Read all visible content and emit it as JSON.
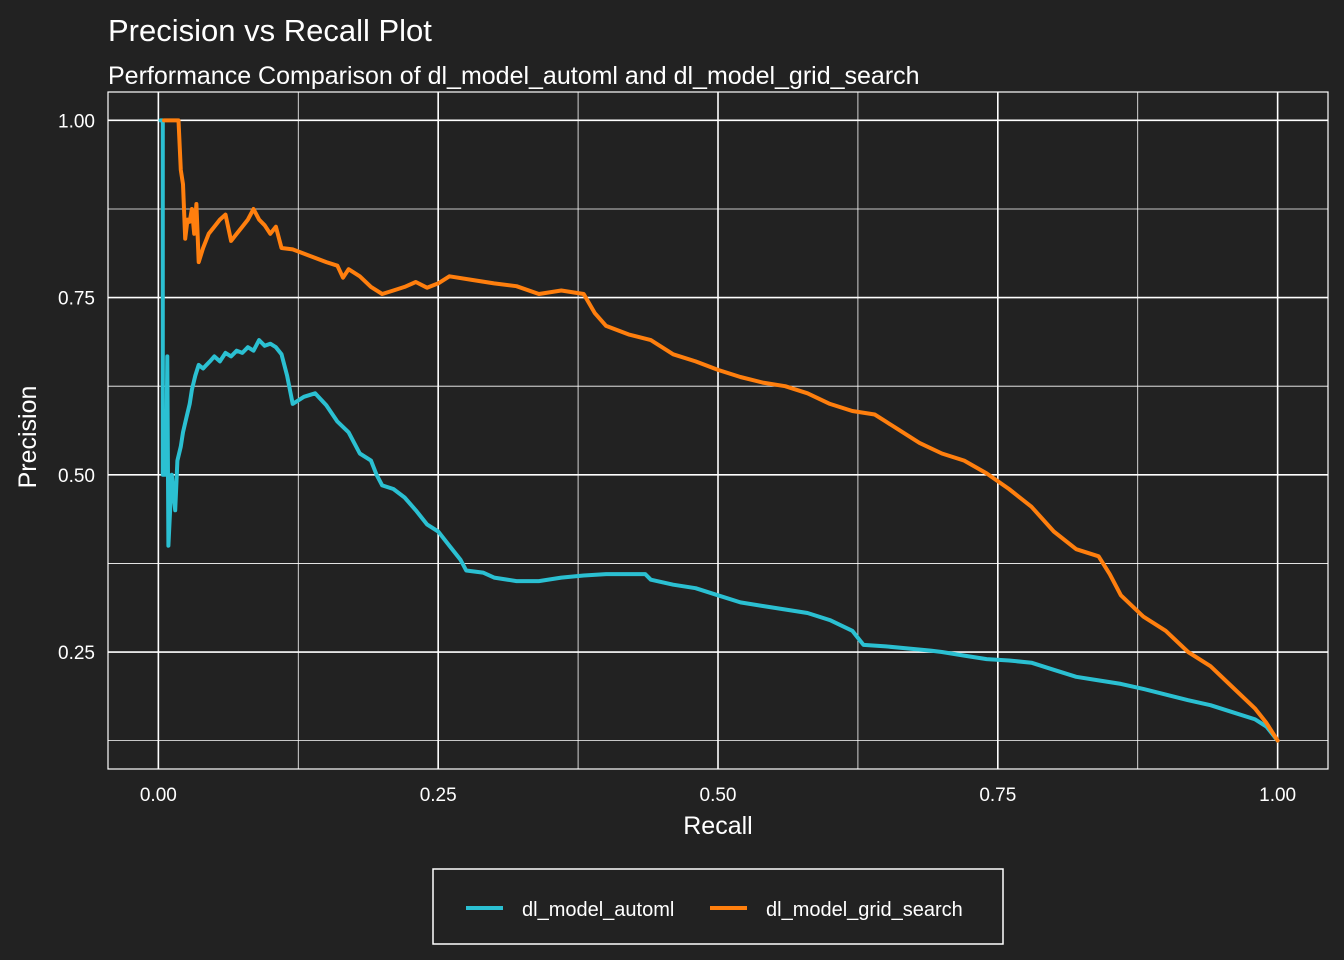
{
  "chart_data": {
    "type": "line",
    "title": "Precision vs Recall Plot",
    "subtitle": "Performance Comparison of dl_model_automl and dl_model_grid_search",
    "xlabel": "Recall",
    "ylabel": "Precision",
    "xlim": [
      -0.045,
      1.045
    ],
    "ylim": [
      0.085,
      1.04
    ],
    "x_ticks": [
      0.0,
      0.25,
      0.5,
      0.75,
      1.0
    ],
    "x_tick_labels": [
      "0.00",
      "0.25",
      "0.50",
      "0.75",
      "1.00"
    ],
    "y_ticks": [
      0.25,
      0.5,
      0.75,
      1.0
    ],
    "y_tick_labels": [
      "0.25",
      "0.50",
      "0.75",
      "1.00"
    ],
    "x_minor": [
      0.125,
      0.375,
      0.625,
      0.875
    ],
    "y_minor": [
      0.125,
      0.375,
      0.625,
      0.875
    ],
    "grid": true,
    "legend_position": "bottom",
    "series": [
      {
        "name": "dl_model_automl",
        "color": "#2bc0d2",
        "points": [
          [
            0.002,
            1.0
          ],
          [
            0.004,
            1.0
          ],
          [
            0.004,
            0.5
          ],
          [
            0.007,
            0.5
          ],
          [
            0.008,
            0.667
          ],
          [
            0.009,
            0.4
          ],
          [
            0.012,
            0.5
          ],
          [
            0.015,
            0.45
          ],
          [
            0.017,
            0.52
          ],
          [
            0.02,
            0.54
          ],
          [
            0.022,
            0.56
          ],
          [
            0.025,
            0.58
          ],
          [
            0.028,
            0.6
          ],
          [
            0.03,
            0.62
          ],
          [
            0.033,
            0.64
          ],
          [
            0.036,
            0.655
          ],
          [
            0.04,
            0.65
          ],
          [
            0.043,
            0.655
          ],
          [
            0.046,
            0.66
          ],
          [
            0.05,
            0.667
          ],
          [
            0.055,
            0.66
          ],
          [
            0.06,
            0.672
          ],
          [
            0.065,
            0.667
          ],
          [
            0.07,
            0.675
          ],
          [
            0.075,
            0.672
          ],
          [
            0.08,
            0.68
          ],
          [
            0.085,
            0.675
          ],
          [
            0.09,
            0.69
          ],
          [
            0.095,
            0.682
          ],
          [
            0.1,
            0.685
          ],
          [
            0.105,
            0.68
          ],
          [
            0.11,
            0.67
          ],
          [
            0.115,
            0.64
          ],
          [
            0.12,
            0.6
          ],
          [
            0.13,
            0.61
          ],
          [
            0.14,
            0.615
          ],
          [
            0.15,
            0.598
          ],
          [
            0.16,
            0.575
          ],
          [
            0.17,
            0.56
          ],
          [
            0.18,
            0.53
          ],
          [
            0.19,
            0.52
          ],
          [
            0.195,
            0.5
          ],
          [
            0.2,
            0.485
          ],
          [
            0.21,
            0.48
          ],
          [
            0.22,
            0.468
          ],
          [
            0.23,
            0.45
          ],
          [
            0.24,
            0.43
          ],
          [
            0.25,
            0.42
          ],
          [
            0.26,
            0.4
          ],
          [
            0.27,
            0.38
          ],
          [
            0.275,
            0.365
          ],
          [
            0.29,
            0.362
          ],
          [
            0.3,
            0.355
          ],
          [
            0.32,
            0.35
          ],
          [
            0.34,
            0.35
          ],
          [
            0.36,
            0.355
          ],
          [
            0.38,
            0.358
          ],
          [
            0.4,
            0.36
          ],
          [
            0.42,
            0.36
          ],
          [
            0.435,
            0.36
          ],
          [
            0.44,
            0.352
          ],
          [
            0.46,
            0.345
          ],
          [
            0.48,
            0.34
          ],
          [
            0.5,
            0.33
          ],
          [
            0.52,
            0.32
          ],
          [
            0.54,
            0.315
          ],
          [
            0.56,
            0.31
          ],
          [
            0.58,
            0.305
          ],
          [
            0.6,
            0.295
          ],
          [
            0.62,
            0.28
          ],
          [
            0.63,
            0.26
          ],
          [
            0.65,
            0.258
          ],
          [
            0.67,
            0.255
          ],
          [
            0.69,
            0.252
          ],
          [
            0.7,
            0.25
          ],
          [
            0.72,
            0.245
          ],
          [
            0.74,
            0.24
          ],
          [
            0.76,
            0.238
          ],
          [
            0.78,
            0.235
          ],
          [
            0.8,
            0.225
          ],
          [
            0.82,
            0.215
          ],
          [
            0.84,
            0.21
          ],
          [
            0.86,
            0.205
          ],
          [
            0.88,
            0.198
          ],
          [
            0.9,
            0.19
          ],
          [
            0.92,
            0.182
          ],
          [
            0.94,
            0.175
          ],
          [
            0.96,
            0.165
          ],
          [
            0.98,
            0.155
          ],
          [
            0.99,
            0.145
          ],
          [
            1.0,
            0.125
          ]
        ]
      },
      {
        "name": "dl_model_grid_search",
        "color": "#ff7f0e",
        "points": [
          [
            0.005,
            1.0
          ],
          [
            0.018,
            1.0
          ],
          [
            0.02,
            0.93
          ],
          [
            0.022,
            0.91
          ],
          [
            0.024,
            0.833
          ],
          [
            0.026,
            0.86
          ],
          [
            0.028,
            0.857
          ],
          [
            0.03,
            0.875
          ],
          [
            0.032,
            0.84
          ],
          [
            0.034,
            0.882
          ],
          [
            0.036,
            0.8
          ],
          [
            0.04,
            0.82
          ],
          [
            0.045,
            0.84
          ],
          [
            0.05,
            0.85
          ],
          [
            0.055,
            0.86
          ],
          [
            0.06,
            0.867
          ],
          [
            0.065,
            0.83
          ],
          [
            0.07,
            0.84
          ],
          [
            0.075,
            0.85
          ],
          [
            0.08,
            0.86
          ],
          [
            0.085,
            0.875
          ],
          [
            0.09,
            0.86
          ],
          [
            0.095,
            0.852
          ],
          [
            0.1,
            0.84
          ],
          [
            0.105,
            0.85
          ],
          [
            0.11,
            0.82
          ],
          [
            0.12,
            0.818
          ],
          [
            0.13,
            0.812
          ],
          [
            0.14,
            0.806
          ],
          [
            0.15,
            0.8
          ],
          [
            0.16,
            0.795
          ],
          [
            0.165,
            0.778
          ],
          [
            0.17,
            0.79
          ],
          [
            0.18,
            0.78
          ],
          [
            0.19,
            0.765
          ],
          [
            0.2,
            0.755
          ],
          [
            0.21,
            0.76
          ],
          [
            0.22,
            0.765
          ],
          [
            0.23,
            0.772
          ],
          [
            0.24,
            0.764
          ],
          [
            0.25,
            0.77
          ],
          [
            0.26,
            0.78
          ],
          [
            0.28,
            0.775
          ],
          [
            0.3,
            0.77
          ],
          [
            0.32,
            0.766
          ],
          [
            0.34,
            0.755
          ],
          [
            0.36,
            0.76
          ],
          [
            0.38,
            0.755
          ],
          [
            0.39,
            0.728
          ],
          [
            0.4,
            0.71
          ],
          [
            0.42,
            0.698
          ],
          [
            0.44,
            0.69
          ],
          [
            0.45,
            0.68
          ],
          [
            0.46,
            0.67
          ],
          [
            0.48,
            0.66
          ],
          [
            0.5,
            0.648
          ],
          [
            0.52,
            0.638
          ],
          [
            0.54,
            0.63
          ],
          [
            0.56,
            0.625
          ],
          [
            0.58,
            0.615
          ],
          [
            0.6,
            0.6
          ],
          [
            0.62,
            0.59
          ],
          [
            0.64,
            0.585
          ],
          [
            0.65,
            0.575
          ],
          [
            0.66,
            0.565
          ],
          [
            0.68,
            0.545
          ],
          [
            0.7,
            0.53
          ],
          [
            0.72,
            0.52
          ],
          [
            0.74,
            0.502
          ],
          [
            0.76,
            0.48
          ],
          [
            0.78,
            0.455
          ],
          [
            0.8,
            0.42
          ],
          [
            0.82,
            0.395
          ],
          [
            0.84,
            0.385
          ],
          [
            0.85,
            0.36
          ],
          [
            0.86,
            0.33
          ],
          [
            0.88,
            0.3
          ],
          [
            0.9,
            0.28
          ],
          [
            0.92,
            0.25
          ],
          [
            0.94,
            0.23
          ],
          [
            0.96,
            0.2
          ],
          [
            0.98,
            0.17
          ],
          [
            0.99,
            0.15
          ],
          [
            1.0,
            0.125
          ]
        ]
      }
    ]
  }
}
